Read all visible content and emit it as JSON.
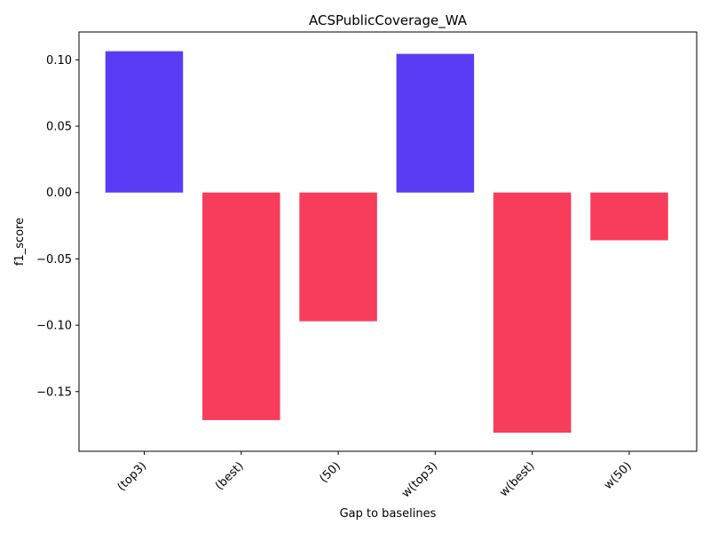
{
  "chart_data": {
    "type": "bar",
    "title": "ACSPublicCoverage_WA",
    "xlabel": "Gap to baselines",
    "ylabel": "f1_score",
    "categories": [
      "(top3)",
      "(best)",
      "(50)",
      "w(top3)",
      "w(best)",
      "w(50)"
    ],
    "values": [
      0.1065,
      -0.1715,
      -0.097,
      0.1045,
      -0.181,
      -0.036
    ],
    "ylim": [
      -0.195,
      0.121
    ],
    "yticks": [
      0.1,
      0.05,
      0.0,
      -0.05,
      -0.1,
      -0.15
    ],
    "ytick_labels": [
      "0.10",
      "0.05",
      "0.00",
      "−0.05",
      "−0.10",
      "−0.15"
    ],
    "colors": {
      "positive": "#5b3cf5",
      "negative": "#f73c5c"
    },
    "grid": false,
    "legend": "none"
  }
}
